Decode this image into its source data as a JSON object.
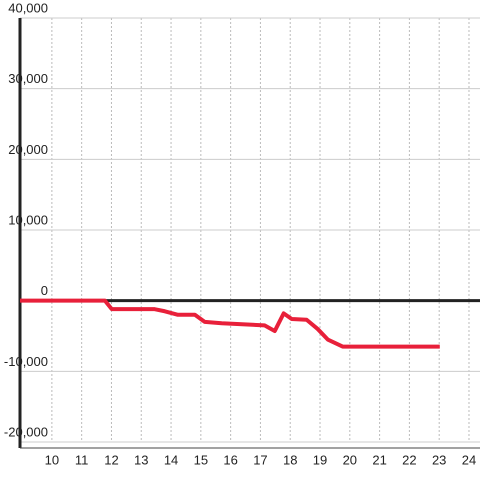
{
  "chart_data": {
    "type": "line",
    "x": [
      8.93,
      11.78,
      12.01,
      13.45,
      13.79,
      14.23,
      14.8,
      15.13,
      15.7,
      17.14,
      17.48,
      17.78,
      18.05,
      18.55,
      18.92,
      19.26,
      19.76,
      23.02
    ],
    "series": [
      {
        "color": "#e8203a",
        "values": [
          0,
          0,
          -1200,
          -1200,
          -1500,
          -2000,
          -2000,
          -3000,
          -3200,
          -3500,
          -4300,
          -1800,
          -2600,
          -2700,
          -4000,
          -5500,
          -6500,
          -6500
        ]
      }
    ],
    "xlim": [
      8.93,
      24.37
    ],
    "ylim": [
      -20000,
      40000
    ],
    "xticks": [
      10,
      11,
      12,
      13,
      14,
      15,
      16,
      17,
      18,
      19,
      20,
      21,
      22,
      23,
      24
    ],
    "yticks": [
      {
        "value": -20000,
        "label": "-20,000"
      },
      {
        "value": -10000,
        "label": "-10,000"
      },
      0,
      {
        "value": 10000,
        "label": "10,000"
      },
      {
        "value": 20000,
        "label": "20,000"
      },
      {
        "value": 30000,
        "label": "30,000"
      },
      {
        "value": 40000,
        "label": "40,000"
      }
    ],
    "grid": true
  }
}
